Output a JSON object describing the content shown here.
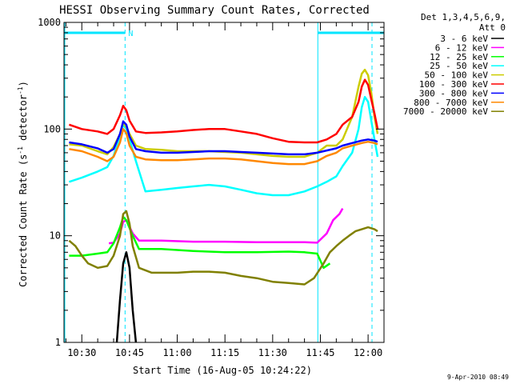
{
  "chart_data": {
    "type": "line",
    "title": "HESSI Observing Summary Count Rates, Corrected",
    "xlabel": "Start Time (16-Aug-05 10:24:22)",
    "ylabel_main": "Corrected Count Rate (s",
    "ylabel_sup1": "-1",
    "ylabel_mid": " detector",
    "ylabel_sup2": "-1",
    "ylabel_end": ")",
    "y_scale": "log",
    "ylim": [
      1,
      1000
    ],
    "xlim_minutes": [
      24.4,
      125
    ],
    "x_ticks": [
      {
        "m": 30,
        "label": "10:30"
      },
      {
        "m": 45,
        "label": "10:45"
      },
      {
        "m": 60,
        "label": "11:00"
      },
      {
        "m": 75,
        "label": "11:15"
      },
      {
        "m": 90,
        "label": "11:30"
      },
      {
        "m": 105,
        "label": "11:45"
      },
      {
        "m": 120,
        "label": "12:00"
      }
    ],
    "y_ticks": [
      {
        "v": 1,
        "label": "1"
      },
      {
        "v": 10,
        "label": "10"
      },
      {
        "v": 100,
        "label": "100"
      },
      {
        "v": 1000,
        "label": "1000"
      }
    ],
    "legend_header": [
      "Det 1,3,4,5,6,9,",
      "Att 0"
    ],
    "night_marker": "N",
    "day_segments": [
      [
        24.4,
        43.6
      ],
      [
        104.2,
        125
      ]
    ],
    "timestamp": "9-Apr-2010 08:49",
    "series": [
      {
        "name": "3 - 6 keV",
        "color": "#000000",
        "x": [
          41,
          42,
          43,
          44,
          45,
          46,
          47
        ],
        "y": [
          1,
          2.5,
          5.5,
          7,
          5,
          2,
          1
        ]
      },
      {
        "name": "6 - 12 keV",
        "color": "#ff00ff",
        "x": [
          38.5,
          40,
          42,
          43,
          44,
          46,
          48,
          55,
          65,
          75,
          85,
          95,
          100,
          104,
          107,
          109,
          111,
          112
        ],
        "y": [
          8.5,
          8.6,
          10.5,
          13.5,
          14,
          10.5,
          9,
          9,
          8.8,
          8.8,
          8.7,
          8.7,
          8.7,
          8.6,
          10.5,
          14,
          16,
          18
        ]
      },
      {
        "name": "12 - 25 keV",
        "color": "#00ff00",
        "x": [
          26,
          30,
          35,
          38,
          40,
          42,
          43,
          44,
          46,
          48,
          55,
          65,
          75,
          85,
          95,
          100,
          104,
          106,
          108
        ],
        "y": [
          6.5,
          6.5,
          6.8,
          7,
          8.5,
          12,
          15,
          14,
          10,
          7.5,
          7.5,
          7.2,
          7.0,
          7.0,
          7.1,
          7.0,
          6.8,
          5,
          5.5
        ]
      },
      {
        "name": "25 - 50 keV",
        "color": "#00ffff",
        "x": [
          26,
          30,
          35,
          38,
          40,
          42,
          43,
          44,
          45,
          47,
          50,
          55,
          60,
          65,
          70,
          75,
          80,
          85,
          90,
          95,
          100,
          104,
          107,
          110,
          112,
          115,
          117,
          118,
          119,
          120,
          121,
          122,
          123
        ],
        "y": [
          32,
          35,
          40,
          44,
          56,
          85,
          110,
          100,
          80,
          50,
          26,
          27,
          28,
          29,
          30,
          29,
          27,
          25,
          24,
          24,
          26,
          29,
          32,
          36,
          45,
          60,
          100,
          160,
          200,
          180,
          120,
          80,
          55
        ]
      },
      {
        "name": "50 - 100 keV",
        "color": "#cccc00",
        "x": [
          26,
          30,
          35,
          38,
          40,
          42,
          43,
          44,
          45,
          47,
          50,
          55,
          60,
          65,
          70,
          75,
          80,
          85,
          90,
          95,
          100,
          104,
          107,
          110,
          112,
          115,
          117,
          118,
          119,
          120,
          121,
          122,
          123
        ],
        "y": [
          72,
          70,
          62,
          58,
          68,
          90,
          115,
          105,
          90,
          70,
          65,
          64,
          62,
          62,
          62,
          61,
          60,
          58,
          56,
          55,
          55,
          60,
          70,
          70,
          80,
          130,
          250,
          330,
          360,
          320,
          220,
          130,
          90
        ]
      },
      {
        "name": "100 - 300 keV",
        "color": "#ff0000",
        "x": [
          26,
          30,
          35,
          38,
          40,
          42,
          43,
          44,
          45,
          47,
          50,
          55,
          60,
          65,
          70,
          75,
          80,
          85,
          90,
          95,
          100,
          104,
          107,
          110,
          112,
          115,
          117,
          118,
          119,
          120,
          121,
          122,
          123
        ],
        "y": [
          110,
          100,
          95,
          90,
          100,
          135,
          165,
          150,
          120,
          95,
          92,
          93,
          95,
          98,
          100,
          100,
          95,
          90,
          82,
          76,
          75,
          75,
          80,
          90,
          110,
          130,
          180,
          250,
          290,
          260,
          190,
          140,
          100
        ]
      },
      {
        "name": "300 - 800 keV",
        "color": "#0000ff",
        "x": [
          26,
          30,
          35,
          38,
          40,
          42,
          43,
          44,
          45,
          47,
          50,
          55,
          60,
          65,
          70,
          75,
          80,
          85,
          90,
          95,
          100,
          104,
          107,
          110,
          112,
          115,
          118,
          120,
          122,
          123
        ],
        "y": [
          75,
          72,
          66,
          60,
          65,
          90,
          118,
          110,
          85,
          65,
          62,
          60,
          60,
          61,
          62,
          62,
          61,
          60,
          59,
          58,
          58,
          60,
          63,
          66,
          70,
          74,
          78,
          80,
          78,
          76
        ]
      },
      {
        "name": "800 - 7000 keV",
        "color": "#ff8800",
        "x": [
          26,
          30,
          35,
          38,
          40,
          42,
          43,
          44,
          45,
          47,
          50,
          55,
          60,
          65,
          70,
          75,
          80,
          85,
          90,
          95,
          100,
          104,
          107,
          110,
          112,
          115,
          118,
          120,
          122,
          123
        ],
        "y": [
          65,
          62,
          55,
          50,
          55,
          75,
          100,
          92,
          70,
          55,
          52,
          51,
          51,
          52,
          53,
          53,
          52,
          50,
          48,
          47,
          47,
          50,
          56,
          60,
          66,
          70,
          74,
          76,
          74,
          72
        ]
      },
      {
        "name": "7000 - 20000 keV",
        "color": "#808000",
        "x": [
          26,
          28,
          30,
          32,
          35,
          38,
          40,
          42,
          43,
          44,
          45,
          46,
          48,
          52,
          55,
          60,
          65,
          70,
          75,
          80,
          85,
          90,
          95,
          100,
          103,
          106,
          108,
          110,
          112,
          114,
          116,
          118,
          120,
          122,
          123
        ],
        "y": [
          9,
          8,
          6.5,
          5.5,
          5,
          5.2,
          6.5,
          10,
          16,
          17,
          13,
          8,
          5,
          4.5,
          4.5,
          4.5,
          4.6,
          4.6,
          4.5,
          4.2,
          4.0,
          3.7,
          3.6,
          3.5,
          4.0,
          5.5,
          7.0,
          8.0,
          9.0,
          10.0,
          11.0,
          11.5,
          12.0,
          11.5,
          11.0
        ]
      }
    ]
  }
}
